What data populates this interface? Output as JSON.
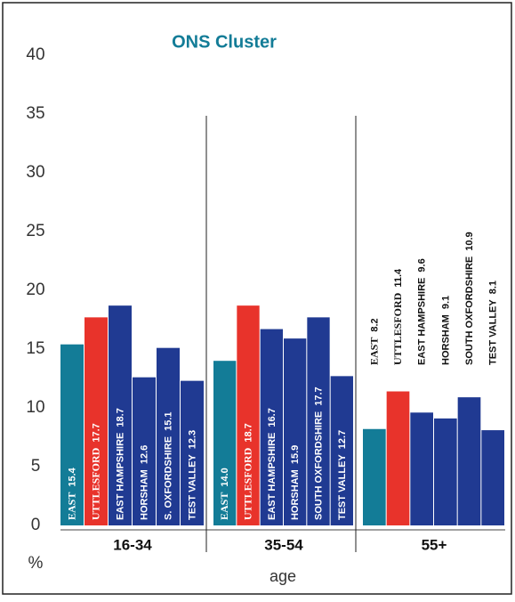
{
  "chart_data": {
    "type": "bar",
    "title": "ONS Cluster",
    "xlabel": "age",
    "ylabel": "%",
    "categories": [
      "16-34",
      "35-54",
      "55+"
    ],
    "series": [
      {
        "labels": [
          "EAST",
          "EAST",
          "EAST"
        ],
        "color": "#137c97",
        "values": [
          15.4,
          14.0,
          8.2
        ],
        "value_labels": [
          "15.4",
          "14.0",
          "8.2"
        ]
      },
      {
        "labels": [
          "UTTLESFORD",
          "UTTLESFORD",
          "UTTLESFORD"
        ],
        "color": "#e8332b",
        "values": [
          17.7,
          18.7,
          11.4
        ],
        "value_labels": [
          "17.7",
          "18.7",
          "11.4"
        ]
      },
      {
        "labels": [
          "EAST HAMPSHIRE",
          "EAST HAMPSHIRE",
          "EAST HAMPSHIRE"
        ],
        "color": "#203a92",
        "values": [
          18.7,
          16.7,
          9.6
        ],
        "value_labels": [
          "18.7",
          "16.7",
          "9.6"
        ]
      },
      {
        "labels": [
          "HORSHAM",
          "HORSHAM",
          "HORSHAM"
        ],
        "color": "#203a92",
        "values": [
          12.6,
          15.9,
          9.1
        ],
        "value_labels": [
          "12.6",
          "15.9",
          "9.1"
        ]
      },
      {
        "labels": [
          "S. OXFORDSHIRE",
          "SOUTH OXFORDSHIRE",
          "SOUTH OXFORDSHIRE"
        ],
        "color": "#203a92",
        "values": [
          15.1,
          17.7,
          10.9
        ],
        "value_labels": [
          "15.1",
          "17.7",
          "10.9"
        ]
      },
      {
        "labels": [
          "TEST VALLEY",
          "TEST VALLEY",
          "TEST VALLEY"
        ],
        "color": "#203a92",
        "values": [
          12.3,
          12.7,
          8.1
        ],
        "value_labels": [
          "12.3",
          "12.7",
          "8.1"
        ]
      }
    ],
    "ylim": [
      0,
      40
    ],
    "yticks": [
      0,
      5,
      10,
      15,
      20,
      25,
      30,
      35,
      40
    ]
  }
}
